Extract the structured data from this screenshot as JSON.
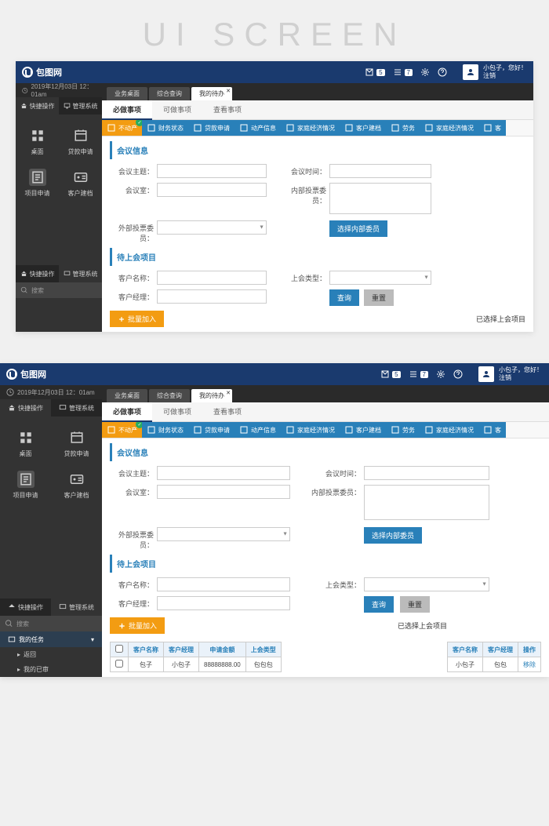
{
  "banner": "UI SCREEN",
  "header": {
    "logo_text": "包图网",
    "mail_count": "5",
    "list_count": "7",
    "user_greeting": "小包子，您好！",
    "logout": "注销"
  },
  "timebar": {
    "datetime": "2019年12月03日 12：01am"
  },
  "sidebar": {
    "tabs": [
      {
        "label": "快捷操作",
        "icon": "home"
      },
      {
        "label": "管理系统",
        "icon": "monitor"
      }
    ],
    "items": [
      {
        "label": "桌面",
        "icon": "grid"
      },
      {
        "label": "贷款申请",
        "icon": "calendar"
      },
      {
        "label": "项目申请",
        "icon": "form"
      },
      {
        "label": "客户建档",
        "icon": "idcard"
      }
    ],
    "search_placeholder": "搜索",
    "tree": [
      {
        "label": "我的任务",
        "icon": "list"
      },
      {
        "label": "返回"
      },
      {
        "label": "我的已审"
      }
    ]
  },
  "top_tabs": [
    {
      "label": "业务桌面"
    },
    {
      "label": "综合查询"
    },
    {
      "label": "我的待办",
      "active": true,
      "closable": true
    }
  ],
  "sub_tabs": [
    {
      "label": "必做事项",
      "active": true
    },
    {
      "label": "可做事项"
    },
    {
      "label": "查看事项"
    }
  ],
  "ribbon": [
    {
      "label": "不动产",
      "color": "orange",
      "checked": true
    },
    {
      "label": "财务状态",
      "color": "blue"
    },
    {
      "label": "贷款申请",
      "color": "blue"
    },
    {
      "label": "动产信息",
      "color": "blue"
    },
    {
      "label": "家庭经济情况",
      "color": "blue"
    },
    {
      "label": "客户建档",
      "color": "blue"
    },
    {
      "label": "劳务",
      "color": "blue"
    },
    {
      "label": "家庭经济情况",
      "color": "blue"
    },
    {
      "label": "客",
      "color": "blue"
    }
  ],
  "sections": {
    "meeting": {
      "title": "会议信息",
      "fields": {
        "subject": "会议主题：",
        "time": "会议时间：",
        "room": "会议室：",
        "internal": "内部投票委员：",
        "external": "外部投票委员：",
        "select_btn": "选择内部委员"
      }
    },
    "pending": {
      "title": "待上会项目",
      "fields": {
        "customer": "客户名称：",
        "type": "上会类型：",
        "manager": "客户经理：",
        "query": "查询",
        "reset": "重置"
      },
      "batch_btn": "批量加入",
      "status": "已选择上会项目"
    }
  },
  "tables": {
    "left": {
      "headers": [
        "",
        "客户名称",
        "客户经理",
        "申请金额",
        "上会类型"
      ],
      "rows": [
        [
          "",
          "包子",
          "小包子",
          "88888888.00",
          "包包包"
        ]
      ]
    },
    "right": {
      "headers": [
        "客户名称",
        "客户经理",
        "操作"
      ],
      "rows": [
        [
          "小包子",
          "包包",
          "移除"
        ]
      ]
    }
  }
}
